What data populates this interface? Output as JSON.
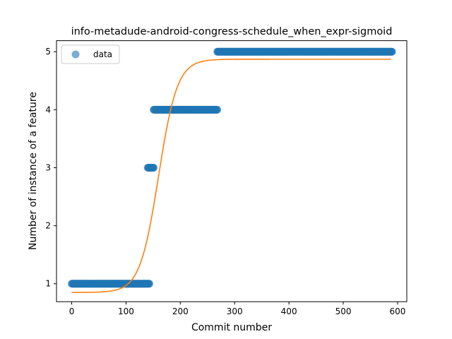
{
  "chart_data": {
    "type": "scatter",
    "title": "info-metadude-android-congress-schedule_when_expr-sigmoid",
    "xlabel": "Commit number",
    "ylabel": "Number of instance of a feature",
    "xlim": [
      -28,
      617
    ],
    "ylim": [
      0.69,
      5.19
    ],
    "xticks": [
      0,
      100,
      200,
      300,
      400,
      500,
      600
    ],
    "yticks": [
      1,
      2,
      3,
      4,
      5
    ],
    "legend": {
      "position": "top-left",
      "entries": [
        "data"
      ]
    },
    "grid": false,
    "series": [
      {
        "name": "data",
        "kind": "points",
        "color": "#1f77b4",
        "alpha": 0.6,
        "segments": [
          {
            "x_start": 0,
            "x_end": 143,
            "y": 1
          },
          {
            "x_start": 140,
            "x_end": 151,
            "y": 3
          },
          {
            "x_start": 151,
            "x_end": 268,
            "y": 4
          },
          {
            "x_start": 268,
            "x_end": 590,
            "y": 5
          }
        ]
      },
      {
        "kind": "sigmoid-fit",
        "color": "#ff7f0e",
        "x_range": [
          0,
          588
        ],
        "lower": 0.85,
        "upper": 4.87,
        "midpoint": 160,
        "rate": 0.058
      }
    ]
  }
}
